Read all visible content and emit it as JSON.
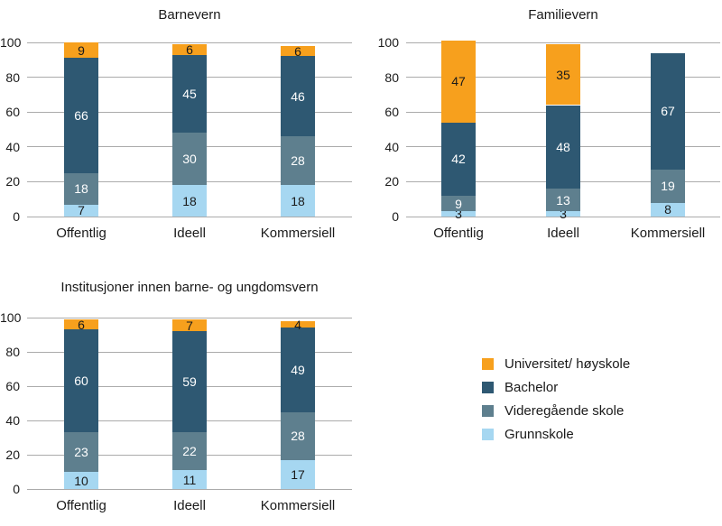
{
  "page": {
    "background": "#FFFFFF"
  },
  "colors": {
    "orange": "#F7A01D",
    "dark_blue": "#2E5872",
    "gray_blue": "#5E7F8E",
    "light_blue": "#A6D7F1",
    "gridline": "#ABABAB",
    "text_dark": "#1A1A1A",
    "text_light": "#FFFFFF"
  },
  "legend": {
    "items": [
      {
        "label": "Universitet/ høyskole",
        "color": "orange"
      },
      {
        "label": "Bachelor",
        "color": "dark_blue"
      },
      {
        "label": "Videregående skole",
        "color": "gray_blue"
      },
      {
        "label": "Grunnskole",
        "color": "light_blue"
      }
    ]
  },
  "chart_data": [
    {
      "type": "bar",
      "stacked": true,
      "title": "Barnevern",
      "categories": [
        "Offentlig",
        "Ideell",
        "Kommersiell"
      ],
      "ylim": [
        0,
        100
      ],
      "yticks": [
        0,
        20,
        40,
        60,
        80,
        100
      ],
      "grid": true,
      "legend_position": "none",
      "series": [
        {
          "name": "Grunnskole",
          "color": "light_blue",
          "label_color": "text_dark",
          "values": [
            7,
            18,
            18
          ]
        },
        {
          "name": "Videregående skole",
          "color": "gray_blue",
          "label_color": "text_light",
          "values": [
            18,
            30,
            28
          ]
        },
        {
          "name": "Bachelor",
          "color": "dark_blue",
          "label_color": "text_light",
          "values": [
            66,
            45,
            46
          ]
        },
        {
          "name": "Universitet/ høyskole",
          "color": "orange",
          "label_color": "text_dark",
          "values": [
            9,
            6,
            6
          ]
        }
      ]
    },
    {
      "type": "bar",
      "stacked": true,
      "title": "Familievern",
      "categories": [
        "Offentlig",
        "Ideell",
        "Kommersiell"
      ],
      "ylim": [
        0,
        100
      ],
      "yticks": [
        0,
        20,
        40,
        60,
        80,
        100
      ],
      "grid": true,
      "legend_position": "none",
      "series": [
        {
          "name": "Grunnskole",
          "color": "light_blue",
          "label_color": "text_dark",
          "values": [
            3,
            3,
            8
          ]
        },
        {
          "name": "Videregående skole",
          "color": "gray_blue",
          "label_color": "text_light",
          "values": [
            9,
            13,
            19
          ]
        },
        {
          "name": "Bachelor",
          "color": "dark_blue",
          "label_color": "text_light",
          "values": [
            42,
            48,
            67
          ]
        },
        {
          "name": "Universitet/ høyskole",
          "color": "orange",
          "label_color": "text_dark",
          "values": [
            47,
            35,
            0
          ]
        }
      ]
    },
    {
      "type": "bar",
      "stacked": true,
      "title": "Institusjoner innen barne- og ungdomsvern",
      "categories": [
        "Offentlig",
        "Ideell",
        "Kommersiell"
      ],
      "ylim": [
        0,
        100
      ],
      "yticks": [
        0,
        20,
        40,
        60,
        80,
        100
      ],
      "grid": true,
      "legend_position": "right",
      "series": [
        {
          "name": "Grunnskole",
          "color": "light_blue",
          "label_color": "text_dark",
          "values": [
            10,
            11,
            17
          ]
        },
        {
          "name": "Videregående skole",
          "color": "gray_blue",
          "label_color": "text_light",
          "values": [
            23,
            22,
            28
          ]
        },
        {
          "name": "Bachelor",
          "color": "dark_blue",
          "label_color": "text_light",
          "values": [
            60,
            59,
            49
          ]
        },
        {
          "name": "Universitet/ høyskole",
          "color": "orange",
          "label_color": "text_dark",
          "values": [
            6,
            7,
            4
          ]
        }
      ]
    }
  ]
}
